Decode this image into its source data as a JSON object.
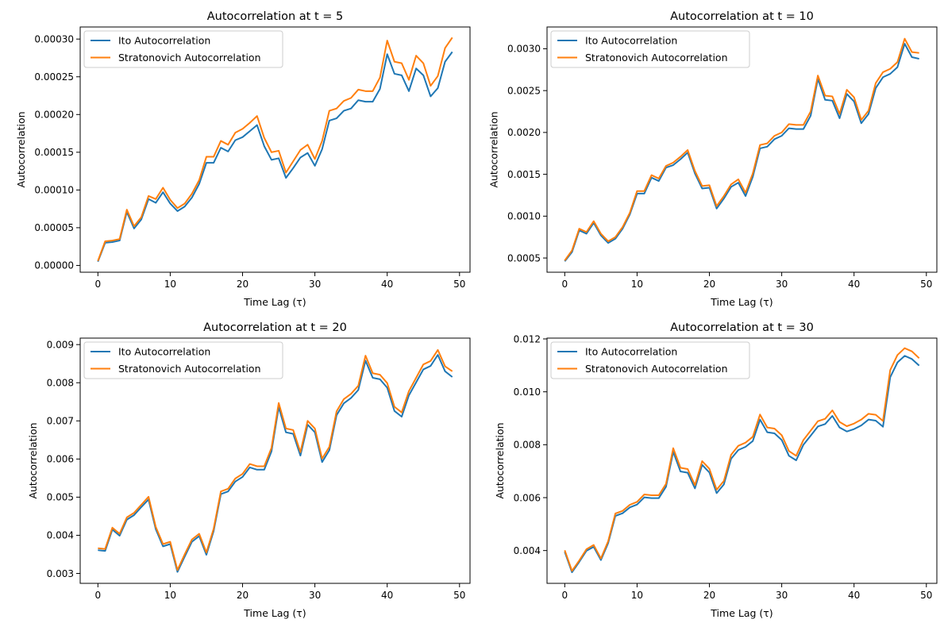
{
  "chart_data": [
    {
      "type": "line",
      "title": "Autocorrelation at t = 5",
      "xlabel": "Time Lag (τ)",
      "ylabel": "Autocorrelation",
      "xlim": [
        -2.45,
        51.45
      ],
      "ylim": [
        -9e-06,
        0.000316
      ],
      "xticks": [
        0,
        10,
        20,
        30,
        40,
        50
      ],
      "xtick_labels": [
        "0",
        "10",
        "20",
        "30",
        "40",
        "50"
      ],
      "yticks": [
        0,
        5e-05,
        0.0001,
        0.00015,
        0.0002,
        0.00025,
        0.0003
      ],
      "ytick_labels": [
        "0.00000",
        "0.00005",
        "0.00010",
        "0.00015",
        "0.00020",
        "0.00025",
        "0.00030"
      ],
      "grid": false,
      "legend": "upper-left",
      "x": [
        0,
        1,
        2,
        3,
        4,
        5,
        6,
        7,
        8,
        9,
        10,
        11,
        12,
        13,
        14,
        15,
        16,
        17,
        18,
        19,
        20,
        21,
        22,
        23,
        24,
        25,
        26,
        27,
        28,
        29,
        30,
        31,
        32,
        33,
        34,
        35,
        36,
        37,
        38,
        39,
        40,
        41,
        42,
        43,
        44,
        45,
        46,
        47,
        48,
        49
      ],
      "series": [
        {
          "name": "Ito Autocorrelation",
          "color": "#1f77b4",
          "values": [
            5e-06,
            3e-05,
            3.1e-05,
            3.3e-05,
            7.1e-05,
            4.9e-05,
            6.1e-05,
            8.8e-05,
            8.3e-05,
            9.7e-05,
            8.2e-05,
            7.2e-05,
            7.8e-05,
            9e-05,
            0.000108,
            0.000136,
            0.000136,
            0.000156,
            0.000151,
            0.000166,
            0.00017,
            0.000178,
            0.000186,
            0.000158,
            0.00014,
            0.000142,
            0.000116,
            0.000129,
            0.000143,
            0.000149,
            0.000132,
            0.000154,
            0.000192,
            0.000195,
            0.000205,
            0.000208,
            0.000219,
            0.000217,
            0.000217,
            0.000234,
            0.00028,
            0.000254,
            0.000252,
            0.000231,
            0.000261,
            0.000252,
            0.000224,
            0.000235,
            0.00027,
            0.000283
          ]
        },
        {
          "name": "Stratonovich Autocorrelation",
          "color": "#ff7f0e",
          "values": [
            6e-06,
            3.2e-05,
            3.3e-05,
            3.5e-05,
            7.4e-05,
            5.2e-05,
            6.4e-05,
            9.2e-05,
            8.8e-05,
            0.000103,
            8.7e-05,
            7.6e-05,
            8.2e-05,
            9.5e-05,
            0.000113,
            0.000144,
            0.000144,
            0.000165,
            0.00016,
            0.000176,
            0.000181,
            0.000189,
            0.000198,
            0.000169,
            0.00015,
            0.000152,
            0.000123,
            0.000138,
            0.000153,
            0.00016,
            0.000141,
            0.000165,
            0.000205,
            0.000208,
            0.000218,
            0.000222,
            0.000233,
            0.000231,
            0.000231,
            0.000249,
            0.000298,
            0.00027,
            0.000268,
            0.000246,
            0.000278,
            0.000268,
            0.000238,
            0.000251,
            0.000288,
            0.000302
          ]
        }
      ]
    },
    {
      "type": "line",
      "title": "Autocorrelation at t = 10",
      "xlabel": "Time Lag (τ)",
      "ylabel": "Autocorrelation",
      "xlim": [
        -2.45,
        51.45
      ],
      "ylim": [
        0.00033,
        0.00326
      ],
      "xticks": [
        0,
        10,
        20,
        30,
        40,
        50
      ],
      "xtick_labels": [
        "0",
        "10",
        "20",
        "30",
        "40",
        "50"
      ],
      "yticks": [
        0.0005,
        0.001,
        0.0015,
        0.002,
        0.0025,
        0.003
      ],
      "ytick_labels": [
        "0.0005",
        "0.0010",
        "0.0015",
        "0.0020",
        "0.0025",
        "0.0030"
      ],
      "grid": false,
      "legend": "upper-left",
      "x": [
        0,
        1,
        2,
        3,
        4,
        5,
        6,
        7,
        8,
        9,
        10,
        11,
        12,
        13,
        14,
        15,
        16,
        17,
        18,
        19,
        20,
        21,
        22,
        23,
        24,
        25,
        26,
        27,
        28,
        29,
        30,
        31,
        32,
        33,
        34,
        35,
        36,
        37,
        38,
        39,
        40,
        41,
        42,
        43,
        44,
        45,
        46,
        47,
        48,
        49
      ],
      "series": [
        {
          "name": "Ito Autocorrelation",
          "color": "#1f77b4",
          "values": [
            0.00046,
            0.00057,
            0.00083,
            0.00079,
            0.00092,
            0.00077,
            0.00068,
            0.00073,
            0.00085,
            0.00102,
            0.00127,
            0.00127,
            0.00146,
            0.00142,
            0.00158,
            0.00161,
            0.00168,
            0.00176,
            0.00151,
            0.00133,
            0.00134,
            0.00109,
            0.00121,
            0.00135,
            0.0014,
            0.00124,
            0.00147,
            0.00181,
            0.00183,
            0.00192,
            0.00196,
            0.00205,
            0.00204,
            0.00204,
            0.0022,
            0.00264,
            0.00239,
            0.00238,
            0.00217,
            0.00246,
            0.00237,
            0.00211,
            0.00222,
            0.00253,
            0.00266,
            0.0027,
            0.00278,
            0.00306,
            0.0029,
            0.00288
          ]
        },
        {
          "name": "Stratonovich Autocorrelation",
          "color": "#ff7f0e",
          "values": [
            0.00047,
            0.00059,
            0.00085,
            0.00081,
            0.00094,
            0.00079,
            0.0007,
            0.00075,
            0.00087,
            0.00104,
            0.0013,
            0.0013,
            0.00149,
            0.00145,
            0.0016,
            0.00164,
            0.00171,
            0.00179,
            0.00154,
            0.00136,
            0.00137,
            0.00112,
            0.00124,
            0.00138,
            0.00144,
            0.00128,
            0.00151,
            0.00185,
            0.00187,
            0.00196,
            0.002,
            0.0021,
            0.00209,
            0.00209,
            0.00225,
            0.00268,
            0.00244,
            0.00243,
            0.00222,
            0.00251,
            0.00242,
            0.00215,
            0.00226,
            0.00259,
            0.00272,
            0.00276,
            0.00284,
            0.00312,
            0.00296,
            0.00295
          ]
        }
      ]
    },
    {
      "type": "line",
      "title": "Autocorrelation at t = 20",
      "xlabel": "Time Lag (τ)",
      "ylabel": "Autocorrelation",
      "xlim": [
        -2.45,
        51.45
      ],
      "ylim": [
        0.00274,
        0.00917
      ],
      "xticks": [
        0,
        10,
        20,
        30,
        40,
        50
      ],
      "xtick_labels": [
        "0",
        "10",
        "20",
        "30",
        "40",
        "50"
      ],
      "yticks": [
        0.003,
        0.004,
        0.005,
        0.006,
        0.007,
        0.008,
        0.009
      ],
      "ytick_labels": [
        "0.003",
        "0.004",
        "0.005",
        "0.006",
        "0.007",
        "0.008",
        "0.009"
      ],
      "grid": false,
      "legend": "upper-left",
      "x": [
        0,
        1,
        2,
        3,
        4,
        5,
        6,
        7,
        8,
        9,
        10,
        11,
        12,
        13,
        14,
        15,
        16,
        17,
        18,
        19,
        20,
        21,
        22,
        23,
        24,
        25,
        26,
        27,
        28,
        29,
        30,
        31,
        32,
        33,
        34,
        35,
        36,
        37,
        38,
        39,
        40,
        41,
        42,
        43,
        44,
        45,
        46,
        47,
        48,
        49
      ],
      "series": [
        {
          "name": "Ito Autocorrelation",
          "color": "#1f77b4",
          "values": [
            0.00361,
            0.00359,
            0.00415,
            0.00399,
            0.00441,
            0.00453,
            0.00474,
            0.00494,
            0.00416,
            0.00371,
            0.00377,
            0.00304,
            0.00344,
            0.00383,
            0.00398,
            0.00349,
            0.00411,
            0.00508,
            0.00515,
            0.00541,
            0.00553,
            0.00578,
            0.00572,
            0.00572,
            0.0062,
            0.00736,
            0.0067,
            0.00666,
            0.00609,
            0.0069,
            0.0067,
            0.00592,
            0.00623,
            0.00715,
            0.00746,
            0.0076,
            0.00781,
            0.00858,
            0.00813,
            0.00809,
            0.00787,
            0.00726,
            0.00711,
            0.00767,
            0.00801,
            0.00835,
            0.00844,
            0.00873,
            0.0083,
            0.00815
          ]
        },
        {
          "name": "Stratonovich Autocorrelation",
          "color": "#ff7f0e",
          "values": [
            0.00366,
            0.00364,
            0.0042,
            0.00404,
            0.00447,
            0.00459,
            0.0048,
            0.00501,
            0.00422,
            0.00377,
            0.00383,
            0.00309,
            0.0035,
            0.00389,
            0.00404,
            0.00355,
            0.00417,
            0.00515,
            0.00522,
            0.00549,
            0.00561,
            0.00587,
            0.00581,
            0.00581,
            0.00629,
            0.00747,
            0.0068,
            0.00676,
            0.00618,
            0.007,
            0.0068,
            0.00601,
            0.00632,
            0.00725,
            0.00757,
            0.00771,
            0.00792,
            0.00871,
            0.00825,
            0.00821,
            0.00799,
            0.00737,
            0.00722,
            0.00778,
            0.00813,
            0.00848,
            0.00857,
            0.00886,
            0.00843,
            0.0083
          ]
        }
      ]
    },
    {
      "type": "line",
      "title": "Autocorrelation at t = 30",
      "xlabel": "Time Lag (τ)",
      "ylabel": "Autocorrelation",
      "xlim": [
        -2.45,
        51.45
      ],
      "ylim": [
        0.00276,
        0.01203
      ],
      "xticks": [
        0,
        10,
        20,
        30,
        40,
        50
      ],
      "xtick_labels": [
        "0",
        "10",
        "20",
        "30",
        "40",
        "50"
      ],
      "yticks": [
        0.004,
        0.006,
        0.008,
        0.01,
        0.012
      ],
      "ytick_labels": [
        "0.004",
        "0.006",
        "0.008",
        "0.010",
        "0.012"
      ],
      "grid": false,
      "legend": "upper-left",
      "x": [
        0,
        1,
        2,
        3,
        4,
        5,
        6,
        7,
        8,
        9,
        10,
        11,
        12,
        13,
        14,
        15,
        16,
        17,
        18,
        19,
        20,
        21,
        22,
        23,
        24,
        25,
        26,
        27,
        28,
        29,
        30,
        31,
        32,
        33,
        34,
        35,
        36,
        37,
        38,
        39,
        40,
        41,
        42,
        43,
        44,
        45,
        46,
        47,
        48,
        49
      ],
      "series": [
        {
          "name": "Ito Autocorrelation",
          "color": "#1f77b4",
          "values": [
            0.00395,
            0.00318,
            0.00357,
            0.00399,
            0.00414,
            0.00364,
            0.00428,
            0.00531,
            0.00541,
            0.00563,
            0.00574,
            0.00601,
            0.00598,
            0.00598,
            0.00641,
            0.00773,
            0.00699,
            0.00694,
            0.00635,
            0.00724,
            0.00695,
            0.00617,
            0.0065,
            0.00747,
            0.0078,
            0.00792,
            0.00814,
            0.00895,
            0.00847,
            0.00843,
            0.00818,
            0.00758,
            0.00741,
            0.008,
            0.00834,
            0.00869,
            0.00878,
            0.00909,
            0.00865,
            0.0085,
            0.00859,
            0.00873,
            0.00895,
            0.00891,
            0.00868,
            0.01055,
            0.01111,
            0.01136,
            0.01124,
            0.01099
          ]
        },
        {
          "name": "Stratonovich Autocorrelation",
          "color": "#ff7f0e",
          "values": [
            0.00401,
            0.00323,
            0.00362,
            0.00405,
            0.00421,
            0.0037,
            0.00435,
            0.0054,
            0.0055,
            0.00573,
            0.00584,
            0.00612,
            0.00609,
            0.00609,
            0.00652,
            0.00787,
            0.00713,
            0.00708,
            0.00647,
            0.00738,
            0.00709,
            0.0063,
            0.00663,
            0.00762,
            0.00796,
            0.00808,
            0.0083,
            0.00914,
            0.00865,
            0.00861,
            0.00836,
            0.00776,
            0.00758,
            0.00818,
            0.00853,
            0.00889,
            0.00898,
            0.0093,
            0.00886,
            0.0087,
            0.0088,
            0.00895,
            0.00917,
            0.00913,
            0.0089,
            0.01082,
            0.01139,
            0.01165,
            0.01153,
            0.01127
          ]
        }
      ]
    }
  ]
}
